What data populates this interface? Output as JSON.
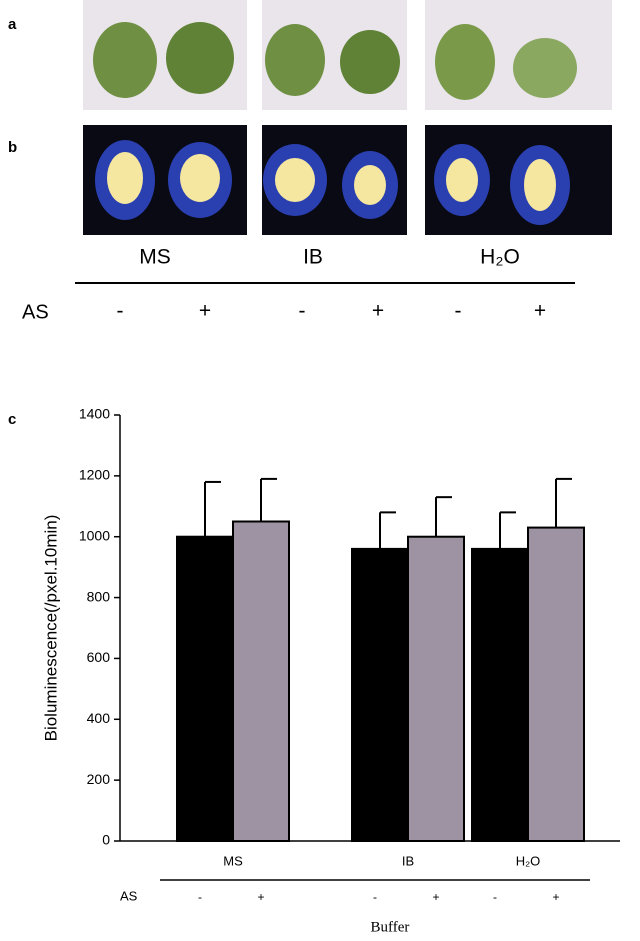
{
  "panel_labels": [
    "a",
    "b",
    "c"
  ],
  "top_groups": [
    "MS",
    "IB",
    "H₂O"
  ],
  "top_treatment_label": "AS",
  "top_treatments": [
    "-",
    "+",
    "-",
    "+",
    "-",
    "+"
  ],
  "chart_data": {
    "type": "bar",
    "y_label": "Bioluminescence(/pxel.10min)",
    "x_label": "Buffer",
    "group_label": "AS",
    "categories": [
      "MS",
      "IB",
      "H₂O"
    ],
    "series": [
      {
        "name": "-",
        "color": "#000000",
        "values": [
          1000,
          960,
          960
        ],
        "errors": [
          180,
          120,
          120
        ]
      },
      {
        "name": "+",
        "color": "#9e93a3",
        "values": [
          1050,
          1000,
          1030
        ],
        "errors": [
          140,
          130,
          160
        ]
      }
    ],
    "ylim": [
      0,
      1400
    ],
    "yticks": [
      0,
      200,
      400,
      600,
      800,
      1000,
      1200,
      1400
    ]
  }
}
